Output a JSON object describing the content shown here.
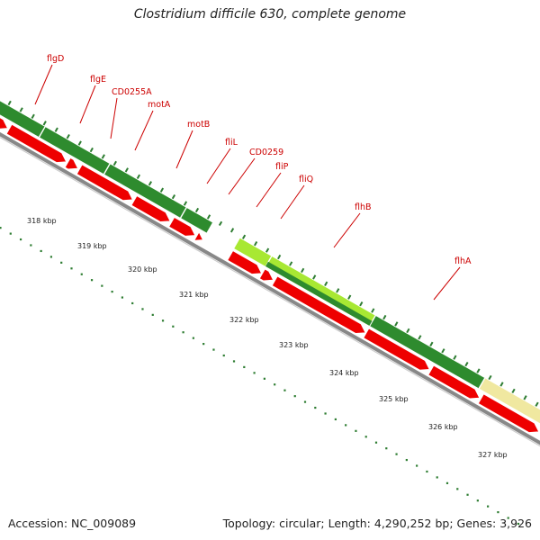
{
  "title": "Clostridium difficile 630, complete genome",
  "footer": {
    "accession": "Accession: NC_009089",
    "summary": "Topology: circular; Length: 4,290,252 bp; Genes: 3,926"
  },
  "colors": {
    "gene_label": "#cc0000",
    "forward_dark": "#2e8b2e",
    "forward_light": "#a8e833",
    "forward_pale": "#f0e8a0",
    "reverse": "#ee0000",
    "backbone": "#888888",
    "ticks": "#2e7d32"
  },
  "gene_labels": [
    "flgD",
    "flgE",
    "CD0255A",
    "motA",
    "motB",
    "fliL",
    "CD0259",
    "fliP",
    "fliQ",
    "flhB",
    "flhA"
  ],
  "scale_labels": [
    "318 kbp",
    "319 kbp",
    "320 kbp",
    "321 kbp",
    "322 kbp",
    "323 kbp",
    "324 kbp",
    "325 kbp",
    "326 kbp",
    "327 kbp"
  ]
}
